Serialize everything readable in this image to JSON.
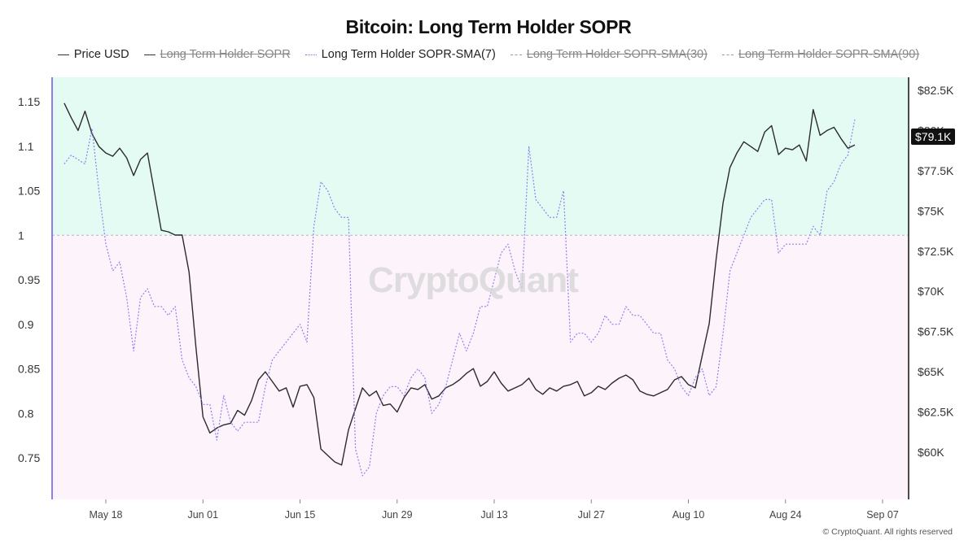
{
  "title": "Bitcoin: Long Term Holder SOPR",
  "legend": [
    {
      "label": "Price USD",
      "style": "solid",
      "active": true
    },
    {
      "label": "Long Term Holder SOPR",
      "style": "solid",
      "active": false
    },
    {
      "label": "Long Term Holder SOPR-SMA(7)",
      "style": "dotted",
      "active": true
    },
    {
      "label": "Long Term Holder SOPR-SMA(30)",
      "style": "dashed",
      "active": false
    },
    {
      "label": "Long Term Holder SOPR-SMA(90)",
      "style": "dashed",
      "active": false
    }
  ],
  "watermark": "CryptoQuant",
  "copyright": "© CryptoQuant. All rights reserved",
  "price_badge": "$79.1K",
  "colors": {
    "above_one_fill": "#e3fbf3",
    "below_one_fill": "#fdf3fb",
    "price_line": "#2b2b2b",
    "sma7_line": "#8f80f0",
    "axis_left": "#8b7ff0"
  },
  "chart_data": {
    "type": "line",
    "title": "Bitcoin: Long Term Holder SOPR",
    "x_start": "2024-05-12",
    "x_ticks": [
      {
        "date": "2024-05-18",
        "label": "May 18"
      },
      {
        "date": "2024-06-01",
        "label": "Jun 01"
      },
      {
        "date": "2024-06-15",
        "label": "Jun 15"
      },
      {
        "date": "2024-06-29",
        "label": "Jun 29"
      },
      {
        "date": "2024-07-13",
        "label": "Jul 13"
      },
      {
        "date": "2024-07-27",
        "label": "Jul 27"
      },
      {
        "date": "2024-08-10",
        "label": "Aug 10"
      },
      {
        "date": "2024-08-24",
        "label": "Aug 24"
      },
      {
        "date": "2024-09-07",
        "label": "Sep 07"
      }
    ],
    "left_axis": {
      "ticks": [
        0.75,
        0.8,
        0.85,
        0.9,
        0.95,
        1,
        1.05,
        1.1,
        1.15
      ],
      "tick_labels": [
        "0.75",
        "0.8",
        "0.85",
        "0.9",
        "0.95",
        "1",
        "1.05",
        "1.1",
        "1.15"
      ],
      "threshold": 1
    },
    "right_axis": {
      "ticks": [
        60000,
        62500,
        65000,
        67500,
        70000,
        72500,
        75000,
        77500,
        80000,
        82500
      ],
      "tick_labels": [
        "$60K",
        "$62.5K",
        "$65K",
        "$67.5K",
        "$70K",
        "$72.5K",
        "$75K",
        "$77.5K",
        "$80K",
        "$82.5K"
      ]
    },
    "series": [
      {
        "name": "Price USD",
        "axis": "right",
        "style": "solid",
        "values": [
          81700,
          80800,
          80000,
          81200,
          79800,
          79000,
          78600,
          78400,
          78900,
          78300,
          77200,
          78200,
          78600,
          76200,
          73800,
          73700,
          73500,
          73500,
          71200,
          66500,
          62200,
          61200,
          61500,
          61700,
          61800,
          62600,
          62300,
          63200,
          64500,
          65000,
          64400,
          63800,
          64000,
          62800,
          64100,
          64200,
          63400,
          60200,
          59800,
          59400,
          59200,
          61400,
          62700,
          64000,
          63500,
          63800,
          62900,
          63000,
          62500,
          63400,
          64000,
          63900,
          64200,
          63300,
          63500,
          64000,
          64200,
          64500,
          64900,
          65200,
          64100,
          64400,
          65000,
          64300,
          63800,
          64000,
          64200,
          64600,
          63900,
          63600,
          64000,
          63800,
          64100,
          64200,
          64400,
          63500,
          63700,
          64100,
          63900,
          64300,
          64600,
          64800,
          64500,
          63800,
          63600,
          63500,
          63700,
          63900,
          64500,
          64700,
          64200,
          64000,
          66000,
          68000,
          72000,
          75500,
          77700,
          78600,
          79300,
          79000,
          78700,
          79900,
          80300,
          78500,
          78900,
          78800,
          79100,
          78100,
          81300,
          79700,
          80000,
          80200,
          79500,
          78900,
          79100
        ]
      },
      {
        "name": "Long Term Holder SOPR-SMA(7)",
        "axis": "left",
        "style": "dotted",
        "values": [
          1.08,
          1.09,
          1.085,
          1.08,
          1.12,
          1.05,
          0.99,
          0.96,
          0.97,
          0.93,
          0.87,
          0.93,
          0.94,
          0.92,
          0.92,
          0.91,
          0.92,
          0.86,
          0.84,
          0.83,
          0.81,
          0.81,
          0.77,
          0.82,
          0.79,
          0.78,
          0.79,
          0.79,
          0.79,
          0.83,
          0.86,
          0.87,
          0.88,
          0.89,
          0.9,
          0.88,
          1.01,
          1.06,
          1.05,
          1.03,
          1.02,
          1.02,
          0.76,
          0.73,
          0.74,
          0.8,
          0.82,
          0.83,
          0.83,
          0.82,
          0.84,
          0.85,
          0.84,
          0.8,
          0.81,
          0.83,
          0.86,
          0.89,
          0.87,
          0.89,
          0.92,
          0.92,
          0.95,
          0.98,
          0.99,
          0.96,
          0.94,
          1.1,
          1.04,
          1.03,
          1.02,
          1.02,
          1.05,
          0.88,
          0.89,
          0.89,
          0.88,
          0.89,
          0.91,
          0.9,
          0.9,
          0.92,
          0.91,
          0.91,
          0.9,
          0.89,
          0.89,
          0.86,
          0.85,
          0.83,
          0.82,
          0.84,
          0.85,
          0.82,
          0.83,
          0.89,
          0.96,
          0.98,
          1.0,
          1.02,
          1.03,
          1.04,
          1.04,
          0.98,
          0.99,
          0.99,
          0.99,
          0.99,
          1.01,
          1.0,
          1.05,
          1.06,
          1.08,
          1.09,
          1.13
        ]
      }
    ]
  }
}
